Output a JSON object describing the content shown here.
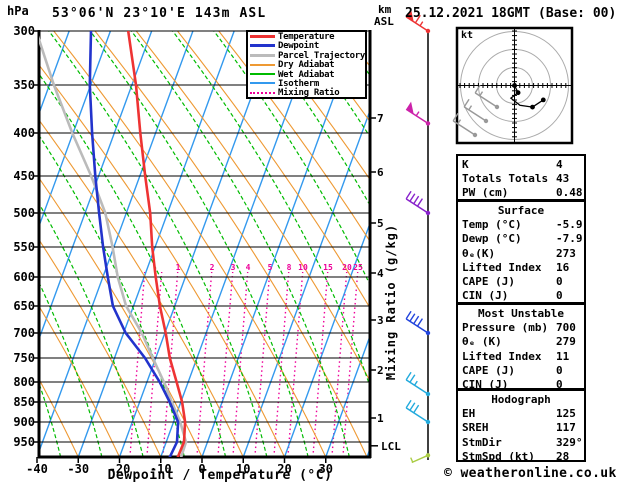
{
  "header": {
    "title": "53°06'N 23°10'E 143m ASL",
    "datetime": "25.12.2021 18GMT (Base: 00)"
  },
  "colors": {
    "temperature": "#ee3333",
    "dewpoint": "#2233cc",
    "parcel": "#bbbbbb",
    "dry_adiabat": "#ee9933",
    "wet_adiabat": "#00bb00",
    "isotherm": "#3399ee",
    "mixing_ratio": "#ee0099",
    "grid": "#000000",
    "hodograph_rings": "#aaaaaa"
  },
  "legend": {
    "items": [
      {
        "label": "Temperature",
        "color": "#ee3333",
        "style": "thick"
      },
      {
        "label": "Dewpoint",
        "color": "#2233cc",
        "style": "thick"
      },
      {
        "label": "Parcel Trajectory",
        "color": "#bbbbbb",
        "style": "thick"
      },
      {
        "label": "Dry Adiabat",
        "color": "#ee9933",
        "style": "thin"
      },
      {
        "label": "Wet Adiabat",
        "color": "#00bb00",
        "style": "thin"
      },
      {
        "label": "Isotherm",
        "color": "#3399ee",
        "style": "thin"
      },
      {
        "label": "Mixing Ratio",
        "color": "#ee0099",
        "style": "dotted"
      }
    ]
  },
  "axes": {
    "pressure": {
      "unit": "hPa",
      "ticks": [
        "300",
        "350",
        "400",
        "450",
        "500",
        "550",
        "600",
        "650",
        "700",
        "750",
        "800",
        "850",
        "900",
        "950"
      ]
    },
    "temperature": {
      "label": "Dewpoint / Temperature (°C)",
      "ticks": [
        "-40",
        "-30",
        "-20",
        "-10",
        "0",
        "10",
        "20",
        "30"
      ]
    },
    "height": {
      "unit_line1": "km",
      "unit_line2": "ASL",
      "ticks": [
        "7",
        "6",
        "5",
        "4",
        "3",
        "2",
        "1"
      ],
      "lcl_label": "LCL"
    },
    "mixing": {
      "label": "Mixing Ratio (g/kg)",
      "values": [
        "1",
        "2",
        "3",
        "4",
        "5",
        "8",
        "10",
        "15",
        "20",
        "25"
      ]
    }
  },
  "hodograph": {
    "unit": "kt"
  },
  "stats": {
    "box1": {
      "rows": [
        [
          "K",
          "4"
        ],
        [
          "Totals Totals",
          "43"
        ],
        [
          "PW (cm)",
          "0.48"
        ]
      ]
    },
    "box2": {
      "title": "Surface",
      "rows": [
        [
          "Temp (°C)",
          "-5.9"
        ],
        [
          "Dewp (°C)",
          "-7.9"
        ],
        [
          "θₑ(K)",
          "273"
        ],
        [
          "Lifted Index",
          "16"
        ],
        [
          "CAPE (J)",
          "0"
        ],
        [
          "CIN (J)",
          "0"
        ]
      ]
    },
    "box3": {
      "title": "Most Unstable",
      "rows": [
        [
          "Pressure (mb)",
          "700"
        ],
        [
          "θₑ (K)",
          "279"
        ],
        [
          "Lifted Index",
          "11"
        ],
        [
          "CAPE (J)",
          "0"
        ],
        [
          "CIN (J)",
          "0"
        ]
      ]
    },
    "box4": {
      "title": "Hodograph",
      "rows": [
        [
          "EH",
          "125"
        ],
        [
          "SREH",
          "117"
        ],
        [
          "StmDir",
          "329°"
        ],
        [
          "StmSpd (kt)",
          "28"
        ]
      ]
    }
  },
  "footer": {
    "credit": "© weatheronline.co.uk"
  },
  "chart_data": {
    "type": "skewt-log-p",
    "pressure_range_hPa": [
      300,
      1000
    ],
    "temp_axis_range_C": [
      -40,
      40
    ],
    "series": [
      {
        "name": "Temperature",
        "color": "#ee3333",
        "points_p_T": [
          [
            300,
            -55.7
          ],
          [
            350,
            -49.0
          ],
          [
            400,
            -43.7
          ],
          [
            450,
            -38.7
          ],
          [
            500,
            -34.2
          ],
          [
            550,
            -30.7
          ],
          [
            600,
            -27.2
          ],
          [
            650,
            -23.6
          ],
          [
            700,
            -19.8
          ],
          [
            750,
            -16.6
          ],
          [
            800,
            -12.8
          ],
          [
            850,
            -9.7
          ],
          [
            900,
            -7.2
          ],
          [
            950,
            -5.7
          ],
          [
            1000,
            -5.9
          ]
        ]
      },
      {
        "name": "Dewpoint",
        "color": "#2233cc",
        "points_p_T": [
          [
            300,
            -64.7
          ],
          [
            350,
            -60.2
          ],
          [
            400,
            -55.4
          ],
          [
            450,
            -50.8
          ],
          [
            500,
            -46.6
          ],
          [
            550,
            -42.6
          ],
          [
            600,
            -38.8
          ],
          [
            650,
            -35.0
          ],
          [
            700,
            -29.5
          ],
          [
            750,
            -22.6
          ],
          [
            800,
            -16.9
          ],
          [
            850,
            -12.7
          ],
          [
            900,
            -8.9
          ],
          [
            950,
            -7.4
          ],
          [
            1000,
            -7.9
          ]
        ]
      },
      {
        "name": "Parcel Trajectory",
        "color": "#bbbbbb",
        "points_p_T": [
          [
            300,
            -78.0
          ],
          [
            350,
            -68.9
          ],
          [
            400,
            -60.2
          ],
          [
            450,
            -51.8
          ],
          [
            500,
            -45.1
          ],
          [
            550,
            -40.3
          ],
          [
            600,
            -36.4
          ],
          [
            650,
            -31.8
          ],
          [
            700,
            -25.6
          ],
          [
            750,
            -20.7
          ],
          [
            800,
            -15.9
          ],
          [
            850,
            -12.2
          ],
          [
            900,
            -8.4
          ],
          [
            950,
            -5.2
          ],
          [
            1000,
            -5.0
          ]
        ]
      }
    ],
    "winds": [
      {
        "pressure_hPa": 300,
        "speed_kt": 65,
        "color": "#ee3333"
      },
      {
        "pressure_hPa": 390,
        "speed_kt": 55,
        "color": "#cc22aa"
      },
      {
        "pressure_hPa": 500,
        "speed_kt": 40,
        "color": "#8822cc"
      },
      {
        "pressure_hPa": 700,
        "speed_kt": 40,
        "color": "#2244dd"
      },
      {
        "pressure_hPa": 830,
        "speed_kt": 25,
        "color": "#22aadd"
      },
      {
        "pressure_hPa": 900,
        "speed_kt": 30,
        "color": "#22aadd"
      },
      {
        "pressure_hPa": 985,
        "speed_kt": 5,
        "color": "#aacc44",
        "down": true
      }
    ],
    "hodograph": {
      "ring_spacing_kt": 10,
      "rings_kt": [
        10,
        20,
        30
      ],
      "trace_u_v_kt": [
        [
          0,
          0
        ],
        [
          2,
          -4
        ],
        [
          -2,
          -7
        ],
        [
          3,
          -11
        ],
        [
          10,
          -12
        ],
        [
          16,
          -8
        ]
      ],
      "dot_indices": [
        0,
        1,
        4,
        5
      ]
    },
    "lcl_pressure_hPa": 960
  }
}
